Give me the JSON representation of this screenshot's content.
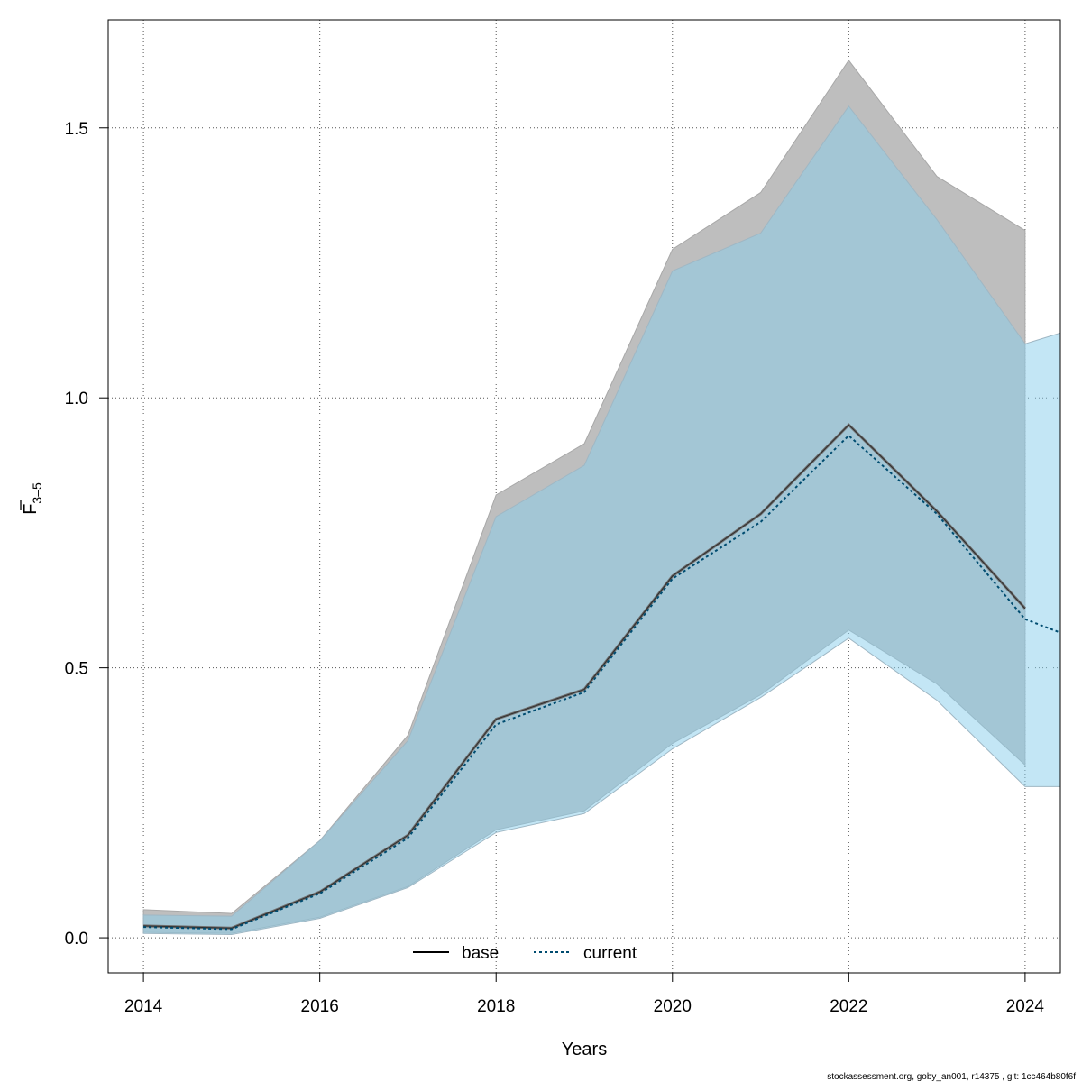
{
  "chart_data": {
    "type": "area",
    "xlabel": "Years",
    "ylabel": "F",
    "ylabel_subscript": "3–5",
    "x_ticks": [
      "2014",
      "2016",
      "2018",
      "2020",
      "2022",
      "2024"
    ],
    "y_ticks": [
      "0.0",
      "0.5",
      "1.0",
      "1.5"
    ],
    "xlim": [
      2013.6,
      2024.4
    ],
    "ylim": [
      -0.065,
      1.7
    ],
    "grid": true,
    "legend_position": "bottom",
    "series": [
      {
        "name": "base",
        "color": "#000000",
        "line_style": "solid",
        "band_color": "#bebebe",
        "x": [
          2014,
          2015,
          2016,
          2017,
          2018,
          2019,
          2020,
          2021,
          2022,
          2023,
          2024
        ],
        "values": [
          0.022,
          0.018,
          0.085,
          0.19,
          0.405,
          0.46,
          0.67,
          0.785,
          0.95,
          0.79,
          0.61
        ],
        "lower": [
          0.01,
          0.008,
          0.038,
          0.095,
          0.2,
          0.235,
          0.36,
          0.45,
          0.57,
          0.47,
          0.32
        ],
        "upper": [
          0.052,
          0.045,
          0.18,
          0.375,
          0.82,
          0.915,
          1.275,
          1.38,
          1.625,
          1.41,
          1.31
        ]
      },
      {
        "name": "current",
        "color": "#004c70",
        "line_style": "dotted",
        "band_color": "#87ceeb",
        "x": [
          2014,
          2015,
          2016,
          2017,
          2018,
          2019,
          2020,
          2021,
          2022,
          2023,
          2024,
          2024.4
        ],
        "values": [
          0.02,
          0.016,
          0.082,
          0.185,
          0.395,
          0.455,
          0.665,
          0.77,
          0.93,
          0.785,
          0.59,
          0.565
        ],
        "lower": [
          0.008,
          0.006,
          0.036,
          0.093,
          0.195,
          0.23,
          0.35,
          0.445,
          0.555,
          0.44,
          0.28,
          0.28
        ],
        "upper": [
          0.042,
          0.04,
          0.18,
          0.365,
          0.78,
          0.875,
          1.235,
          1.305,
          1.54,
          1.33,
          1.1,
          1.12
        ]
      }
    ]
  },
  "footer": "stockassessment.org, goby_an001, r14375 , git: 1cc464b80f6f",
  "legend": {
    "base_label": "base",
    "current_label": "current"
  }
}
